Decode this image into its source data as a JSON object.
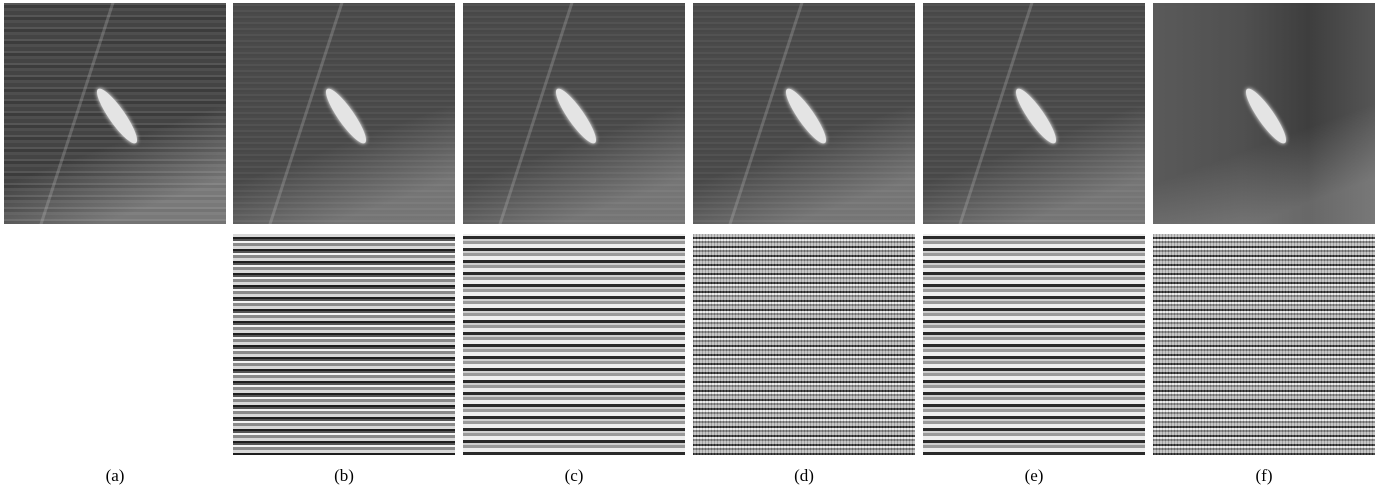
{
  "labels": [
    "(a)",
    "(b)",
    "(c)",
    "(d)",
    "(e)",
    "(f)"
  ]
}
